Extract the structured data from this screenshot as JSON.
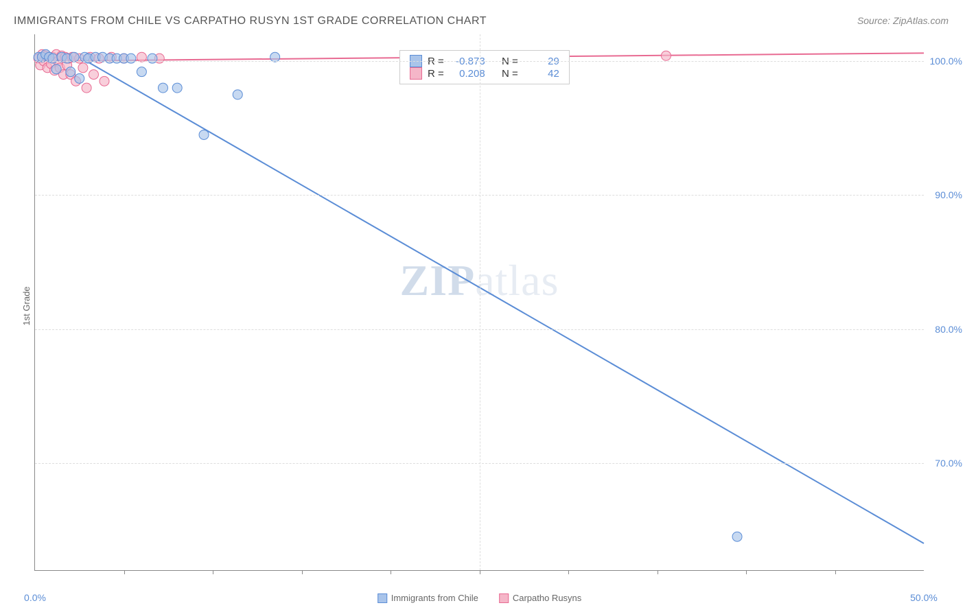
{
  "title": "IMMIGRANTS FROM CHILE VS CARPATHO RUSYN 1ST GRADE CORRELATION CHART",
  "source": "Source: ZipAtlas.com",
  "ylabel": "1st Grade",
  "watermark_a": "ZIP",
  "watermark_b": "atlas",
  "series": {
    "blue": {
      "label": "Immigrants from Chile",
      "fill": "#a9c4ea",
      "stroke": "#5b8dd6",
      "r_label": "R =",
      "r_value": "-0.873",
      "n_label": "N =",
      "n_value": "29",
      "points": [
        {
          "x": 0.2,
          "y": 100.3
        },
        {
          "x": 0.4,
          "y": 100.3
        },
        {
          "x": 0.6,
          "y": 100.5
        },
        {
          "x": 0.8,
          "y": 100.3
        },
        {
          "x": 1.0,
          "y": 100.2
        },
        {
          "x": 1.2,
          "y": 99.4
        },
        {
          "x": 1.5,
          "y": 100.3
        },
        {
          "x": 1.8,
          "y": 100.2
        },
        {
          "x": 2.0,
          "y": 99.2
        },
        {
          "x": 2.2,
          "y": 100.3
        },
        {
          "x": 2.5,
          "y": 98.7
        },
        {
          "x": 2.8,
          "y": 100.3
        },
        {
          "x": 3.0,
          "y": 100.2
        },
        {
          "x": 3.4,
          "y": 100.3
        },
        {
          "x": 3.8,
          "y": 100.3
        },
        {
          "x": 4.2,
          "y": 100.2
        },
        {
          "x": 4.6,
          "y": 100.2
        },
        {
          "x": 5.0,
          "y": 100.2
        },
        {
          "x": 5.4,
          "y": 100.2
        },
        {
          "x": 6.0,
          "y": 99.2
        },
        {
          "x": 6.6,
          "y": 100.2
        },
        {
          "x": 7.2,
          "y": 98.0
        },
        {
          "x": 8.0,
          "y": 98.0
        },
        {
          "x": 9.5,
          "y": 94.5
        },
        {
          "x": 11.4,
          "y": 97.5
        },
        {
          "x": 13.5,
          "y": 100.3
        },
        {
          "x": 39.5,
          "y": 64.5
        }
      ],
      "regression": {
        "x1": 2.5,
        "y1": 100.3,
        "x2": 50.0,
        "y2": 64.0
      }
    },
    "pink": {
      "label": "Carpatho Rusyns",
      "fill": "#f5b6c8",
      "stroke": "#e86a92",
      "r_label": "R =",
      "r_value": "0.208",
      "n_label": "N =",
      "n_value": "42",
      "points": [
        {
          "x": 0.2,
          "y": 100.2
        },
        {
          "x": 0.3,
          "y": 99.7
        },
        {
          "x": 0.4,
          "y": 100.5
        },
        {
          "x": 0.5,
          "y": 100.0
        },
        {
          "x": 0.6,
          "y": 100.4
        },
        {
          "x": 0.7,
          "y": 99.5
        },
        {
          "x": 0.8,
          "y": 100.3
        },
        {
          "x": 0.9,
          "y": 99.8
        },
        {
          "x": 1.0,
          "y": 100.3
        },
        {
          "x": 1.1,
          "y": 99.3
        },
        {
          "x": 1.2,
          "y": 100.5
        },
        {
          "x": 1.3,
          "y": 100.0
        },
        {
          "x": 1.4,
          "y": 99.5
        },
        {
          "x": 1.5,
          "y": 100.4
        },
        {
          "x": 1.6,
          "y": 99.0
        },
        {
          "x": 1.7,
          "y": 100.3
        },
        {
          "x": 1.8,
          "y": 99.7
        },
        {
          "x": 1.9,
          "y": 100.2
        },
        {
          "x": 2.0,
          "y": 99.0
        },
        {
          "x": 2.1,
          "y": 100.3
        },
        {
          "x": 2.3,
          "y": 98.5
        },
        {
          "x": 2.5,
          "y": 100.2
        },
        {
          "x": 2.7,
          "y": 99.5
        },
        {
          "x": 2.9,
          "y": 98.0
        },
        {
          "x": 3.1,
          "y": 100.3
        },
        {
          "x": 3.3,
          "y": 99.0
        },
        {
          "x": 3.6,
          "y": 100.2
        },
        {
          "x": 3.9,
          "y": 98.5
        },
        {
          "x": 4.3,
          "y": 100.3
        },
        {
          "x": 5.0,
          "y": 100.2
        },
        {
          "x": 6.0,
          "y": 100.3
        },
        {
          "x": 7.0,
          "y": 100.2
        },
        {
          "x": 35.5,
          "y": 100.4
        }
      ],
      "regression": {
        "x1": 0.0,
        "y1": 100.0,
        "x2": 50.0,
        "y2": 100.6
      }
    }
  },
  "axes": {
    "xlim": [
      0,
      50
    ],
    "ylim": [
      62,
      102
    ],
    "yticks": [
      {
        "v": 100,
        "label": "100.0%"
      },
      {
        "v": 90,
        "label": "90.0%"
      },
      {
        "v": 80,
        "label": "80.0%"
      },
      {
        "v": 70,
        "label": "70.0%"
      }
    ],
    "xticks_major": [
      {
        "v": 0,
        "label": "0.0%"
      },
      {
        "v": 50,
        "label": "50.0%"
      }
    ],
    "xticks_minor": [
      5,
      10,
      15,
      20,
      25,
      30,
      35,
      40,
      45
    ],
    "grid_color": "#dddddd"
  },
  "styling": {
    "background": "#ffffff",
    "title_color": "#555555",
    "title_fontsize": 16,
    "axis_color": "#888888",
    "label_color_blue": "#5b8dd6",
    "marker_radius": 7,
    "marker_opacity": 0.65,
    "line_width": 2
  },
  "stats_box": {
    "top_pct": 3,
    "left_pct": 41
  }
}
